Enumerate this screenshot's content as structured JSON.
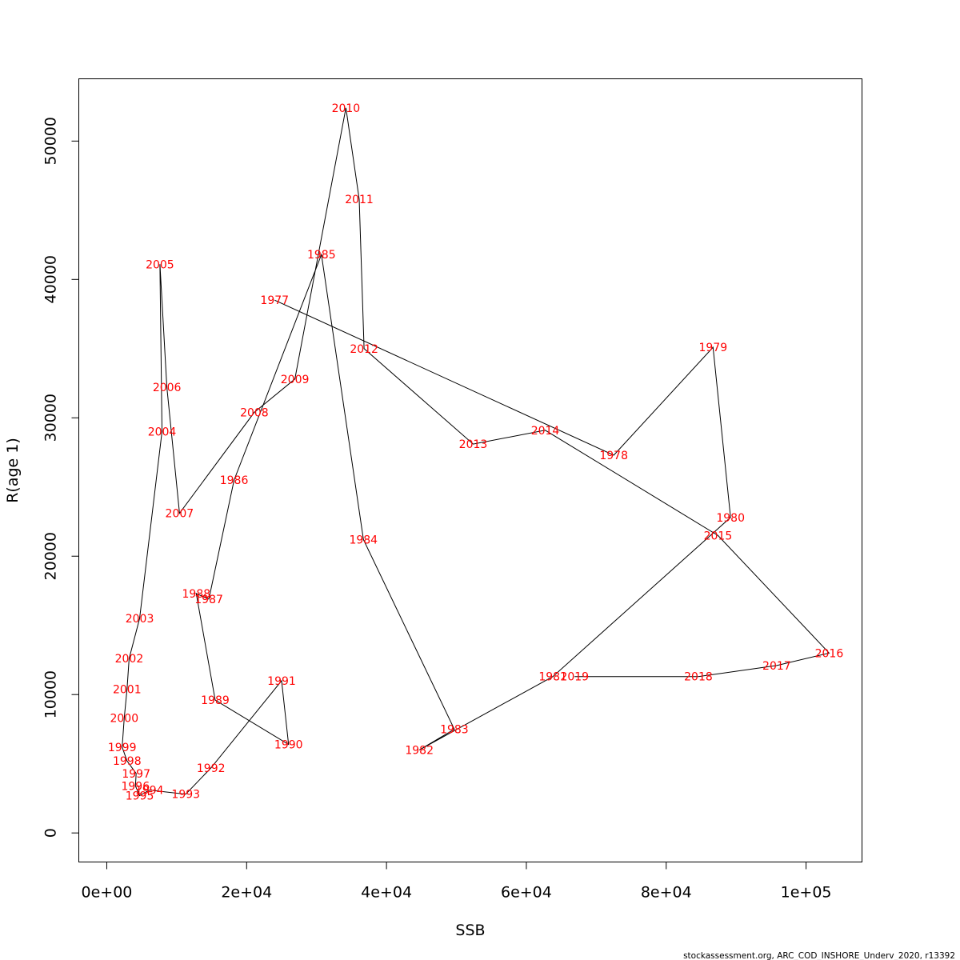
{
  "chart_data": {
    "type": "line",
    "xlabel": "SSB",
    "ylabel": "R(age 1)",
    "xlim": [
      -4000,
      108000
    ],
    "ylim": [
      -2100,
      54500
    ],
    "x_ticks": [
      0,
      20000,
      40000,
      60000,
      80000,
      100000
    ],
    "x_tick_labels": [
      "0e+00",
      "2e+04",
      "4e+04",
      "6e+04",
      "8e+04",
      "1e+05"
    ],
    "y_ticks": [
      0,
      10000,
      20000,
      30000,
      40000,
      50000
    ],
    "y_tick_labels": [
      "0",
      "10000",
      "20000",
      "30000",
      "40000",
      "50000"
    ],
    "grid": false,
    "footer": "stockassessment.org, ARC_COD_INSHORE_Underv_2020, r13392",
    "points": [
      {
        "year": "1977",
        "ssb": 24000,
        "rec": 38500
      },
      {
        "year": "1978",
        "ssb": 72500,
        "rec": 27300
      },
      {
        "year": "1979",
        "ssb": 86700,
        "rec": 35100
      },
      {
        "year": "1980",
        "ssb": 89200,
        "rec": 22800
      },
      {
        "year": "1981",
        "ssb": 63800,
        "rec": 11300
      },
      {
        "year": "1982",
        "ssb": 44700,
        "rec": 6000
      },
      {
        "year": "1983",
        "ssb": 49700,
        "rec": 7500
      },
      {
        "year": "1984",
        "ssb": 36700,
        "rec": 21200
      },
      {
        "year": "1985",
        "ssb": 30700,
        "rec": 41800
      },
      {
        "year": "1986",
        "ssb": 18200,
        "rec": 25500
      },
      {
        "year": "1987",
        "ssb": 14600,
        "rec": 16900
      },
      {
        "year": "1988",
        "ssb": 12800,
        "rec": 17300
      },
      {
        "year": "1989",
        "ssb": 15500,
        "rec": 9600
      },
      {
        "year": "1990",
        "ssb": 26000,
        "rec": 6400
      },
      {
        "year": "1991",
        "ssb": 25000,
        "rec": 11000
      },
      {
        "year": "1992",
        "ssb": 14900,
        "rec": 4700
      },
      {
        "year": "1993",
        "ssb": 11300,
        "rec": 2800
      },
      {
        "year": "1994",
        "ssb": 6100,
        "rec": 3100
      },
      {
        "year": "1995",
        "ssb": 4700,
        "rec": 2700
      },
      {
        "year": "1996",
        "ssb": 4100,
        "rec": 3400
      },
      {
        "year": "1997",
        "ssb": 4200,
        "rec": 4300
      },
      {
        "year": "1998",
        "ssb": 2900,
        "rec": 5200
      },
      {
        "year": "1999",
        "ssb": 2200,
        "rec": 6200
      },
      {
        "year": "2000",
        "ssb": 2500,
        "rec": 8300
      },
      {
        "year": "2001",
        "ssb": 2900,
        "rec": 10400
      },
      {
        "year": "2002",
        "ssb": 3200,
        "rec": 12600
      },
      {
        "year": "2003",
        "ssb": 4700,
        "rec": 15500
      },
      {
        "year": "2004",
        "ssb": 7900,
        "rec": 29000
      },
      {
        "year": "2005",
        "ssb": 7600,
        "rec": 41100
      },
      {
        "year": "2006",
        "ssb": 8600,
        "rec": 32200
      },
      {
        "year": "2007",
        "ssb": 10400,
        "rec": 23100
      },
      {
        "year": "2008",
        "ssb": 21100,
        "rec": 30400
      },
      {
        "year": "2009",
        "ssb": 26900,
        "rec": 32800
      },
      {
        "year": "2010",
        "ssb": 34200,
        "rec": 52400
      },
      {
        "year": "2011",
        "ssb": 36100,
        "rec": 45800
      },
      {
        "year": "2012",
        "ssb": 36800,
        "rec": 35000
      },
      {
        "year": "2013",
        "ssb": 52400,
        "rec": 28100
      },
      {
        "year": "2014",
        "ssb": 62700,
        "rec": 29100
      },
      {
        "year": "2015",
        "ssb": 87400,
        "rec": 21500
      },
      {
        "year": "2016",
        "ssb": 103300,
        "rec": 13000
      },
      {
        "year": "2017",
        "ssb": 95800,
        "rec": 12100
      },
      {
        "year": "2018",
        "ssb": 84600,
        "rec": 11300
      },
      {
        "year": "2019",
        "ssb": 66900,
        "rec": 11300
      }
    ]
  }
}
